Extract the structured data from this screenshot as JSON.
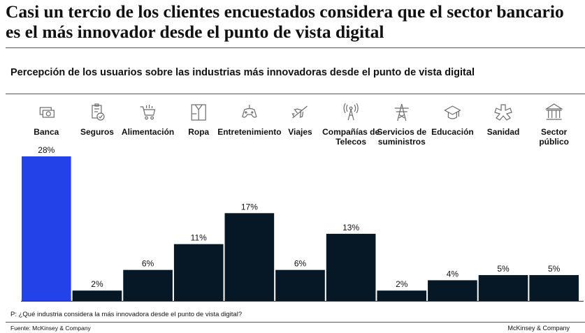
{
  "headline": "Casi un tercio de los clientes encuestados considera que el sector bancario es el más innovador desde el punto de vista digital",
  "footer": {
    "question": "P: ¿Qué industria considera la más innovadora  desde el punto de vista digital?",
    "source": "Fuente: McKinsey & Company",
    "brand": "McKinsey & Company"
  },
  "colors": {
    "highlight": "#2342E8",
    "bar": "#061826",
    "axis": "#333333"
  },
  "chart_data": {
    "type": "bar",
    "title": "Percepción de los usuarios sobre las industrias más innovadoras desde el punto de vista digital",
    "xlabel": "",
    "ylabel": "",
    "ylim": [
      0,
      28
    ],
    "grid": false,
    "categories": [
      [
        "Banca"
      ],
      [
        "Seguros"
      ],
      [
        "Alimentación"
      ],
      [
        "Ropa"
      ],
      [
        "Entretenimiento"
      ],
      [
        "Viajes"
      ],
      [
        "Compañías de",
        "Telecos"
      ],
      [
        "Servicios de",
        "suministros"
      ],
      [
        "Educación"
      ],
      [
        "Sanidad"
      ],
      [
        "Sector",
        "público"
      ]
    ],
    "values": [
      28,
      2,
      6,
      11,
      17,
      6,
      13,
      2,
      4,
      5,
      5
    ],
    "value_labels": [
      "28%",
      "2%",
      "6%",
      "11%",
      "17%",
      "6%",
      "13%",
      "2%",
      "4%",
      "5%",
      "5%"
    ],
    "icons": [
      "money-icon",
      "clipboard-check-icon",
      "shopping-cart-icon",
      "clothing-icon",
      "gamepad-icon",
      "airplane-icon",
      "antenna-icon",
      "power-tower-icon",
      "graduation-cap-icon",
      "medical-cross-icon",
      "bank-building-icon"
    ],
    "highlight_index": 0
  }
}
